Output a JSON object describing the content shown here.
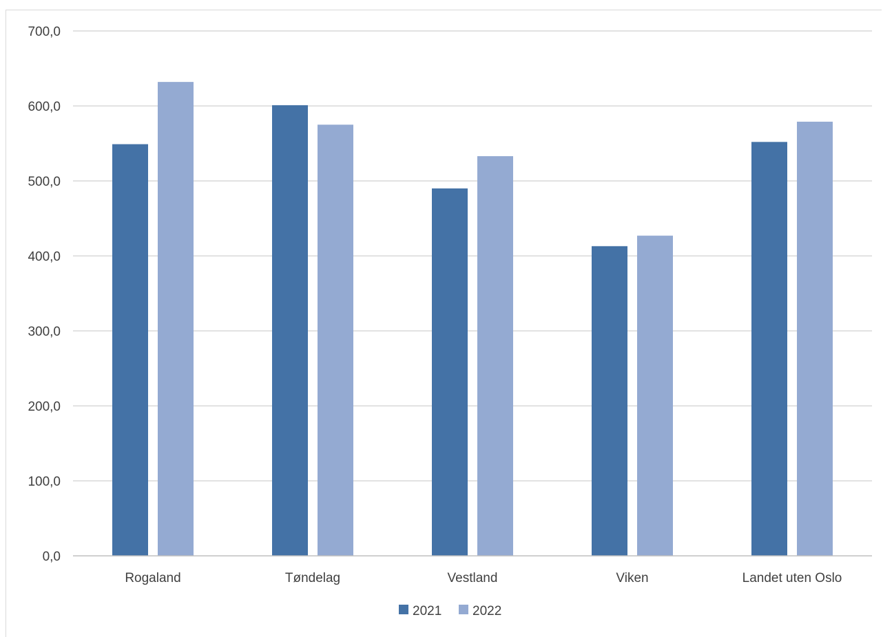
{
  "chart_data": {
    "type": "bar",
    "categories": [
      "Rogaland",
      "Tøndelag",
      "Vestland",
      "Viken",
      "Landet uten Oslo"
    ],
    "series": [
      {
        "name": "2021",
        "values": [
          549,
          601,
          490,
          413,
          552
        ],
        "color": "#4472a6"
      },
      {
        "name": "2022",
        "values": [
          632,
          575,
          533,
          427,
          579
        ],
        "color": "#94aad2"
      }
    ],
    "ylim": [
      0,
      700
    ],
    "yticks": [
      "0,0",
      "100,0",
      "200,0",
      "300,0",
      "400,0",
      "500,0",
      "600,0",
      "700,0"
    ],
    "title": "",
    "xlabel": "",
    "ylabel": "",
    "grid": true,
    "legend_position": "bottom",
    "gridline_color": "#d9d9d9",
    "axis_color": "#bfbfbf"
  }
}
